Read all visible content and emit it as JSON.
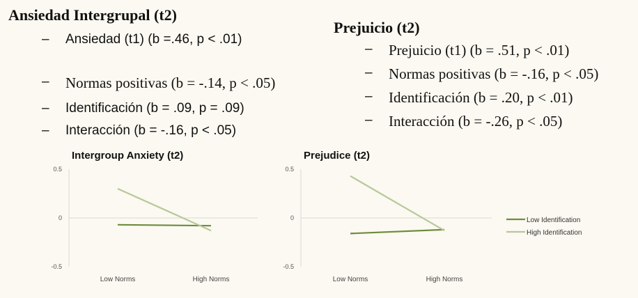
{
  "left_block": {
    "title": "Ansiedad Intergrupal (t2)",
    "items": [
      {
        "text": "Ansiedad (t1) (b =.46, p < .01)",
        "style": "sans"
      },
      {
        "text": "Normas positivas (b = -.14, p < .05)",
        "style": "serif"
      },
      {
        "text": "Identificación (b = .09, p = .09)",
        "style": "sans"
      },
      {
        "text": "Interacción (b = -.16, p < .05)",
        "style": "sans"
      }
    ]
  },
  "right_block": {
    "title": "Prejuicio (t2)",
    "items": [
      {
        "text": "Prejuicio (t1) (b = .51, p < .01)"
      },
      {
        "text": "Normas positivas (b = -.16, p < .05)"
      },
      {
        "text": "Identificación (b = .20, p < .01)"
      },
      {
        "text": "Interacción (b = -.26, p < .05)"
      }
    ]
  },
  "bullet_symbol": "–",
  "chart_data": [
    {
      "type": "line",
      "title": "Intergroup Anxiety (t2)",
      "categories": [
        "Low Norms",
        "High Norms"
      ],
      "ylim": [
        -0.5,
        0.5
      ],
      "yticks": [
        "0.5",
        "0",
        "-0.5"
      ],
      "grid": false,
      "series": [
        {
          "name": "Low Identification",
          "values": [
            -0.07,
            -0.08
          ],
          "color": "#6e8b3d"
        },
        {
          "name": "High Identification",
          "values": [
            0.3,
            -0.13
          ],
          "color": "#b8c89a"
        }
      ]
    },
    {
      "type": "line",
      "title": "Prejudice (t2)",
      "categories": [
        "Low Norms",
        "High Norms"
      ],
      "ylim": [
        -0.5,
        0.5
      ],
      "yticks": [
        "0.5",
        "0",
        "-0.5"
      ],
      "grid": false,
      "legend": "right",
      "series": [
        {
          "name": "Low Identification",
          "values": [
            -0.16,
            -0.12
          ],
          "color": "#6e8b3d"
        },
        {
          "name": "High Identification",
          "values": [
            0.43,
            -0.13
          ],
          "color": "#b8c89a"
        }
      ]
    }
  ]
}
